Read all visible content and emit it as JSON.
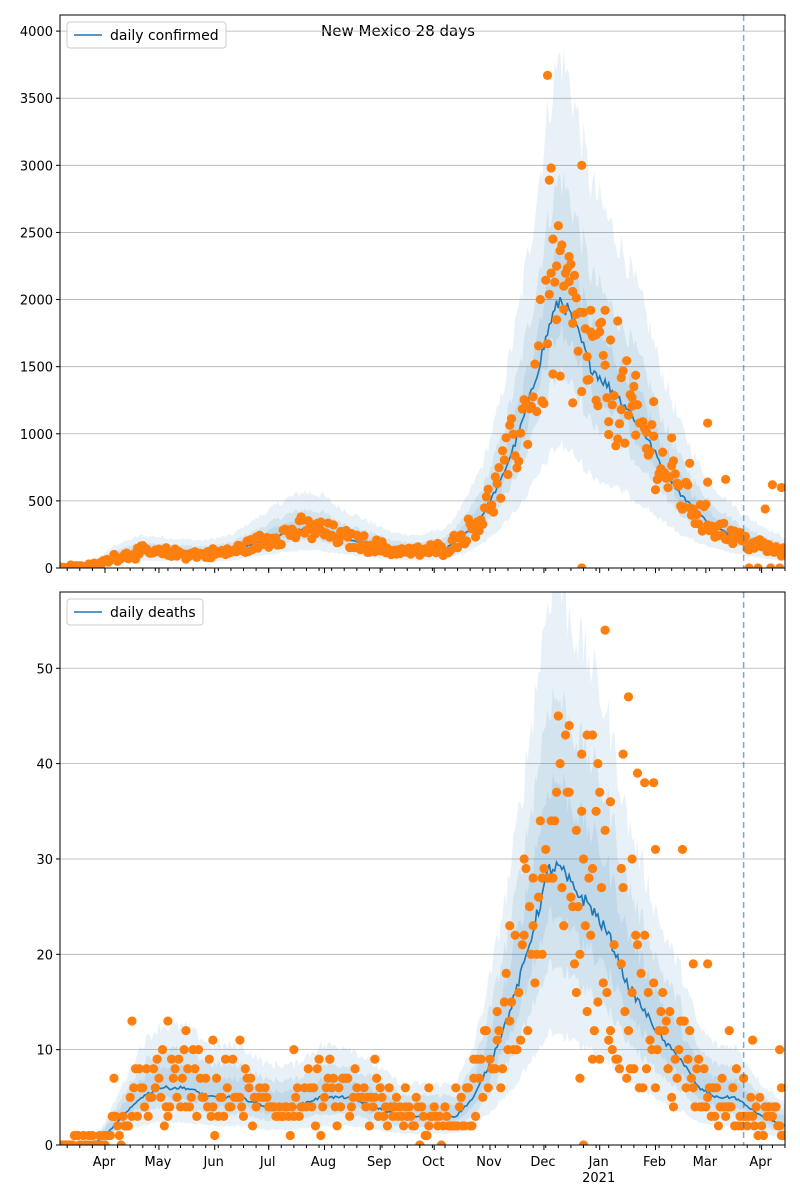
{
  "figure_title": "New Mexico 28 days",
  "colors": {
    "line": "#1f77b4",
    "band": "#1f77b4",
    "points": "#ff7f0e",
    "grid": "#b0b0b0",
    "vline": "#1f77b4"
  },
  "chart_data": [
    {
      "type": "line",
      "legend": "daily confirmed",
      "legend_position": "top-left",
      "ylim": [
        0,
        4120
      ],
      "yticks": [
        0,
        500,
        1000,
        1500,
        2000,
        2500,
        3000,
        3500,
        4000
      ],
      "x_range_days": [
        0,
        403
      ],
      "grid": "horizontal",
      "vline_day": 380,
      "band_widths": [
        0.2,
        0.45,
        0.9
      ],
      "median_keypoints": [
        [
          0,
          5
        ],
        [
          20,
          20
        ],
        [
          30,
          80
        ],
        [
          45,
          120
        ],
        [
          60,
          110
        ],
        [
          80,
          100
        ],
        [
          95,
          120
        ],
        [
          110,
          190
        ],
        [
          125,
          260
        ],
        [
          135,
          290
        ],
        [
          145,
          280
        ],
        [
          155,
          230
        ],
        [
          170,
          180
        ],
        [
          185,
          130
        ],
        [
          200,
          120
        ],
        [
          215,
          150
        ],
        [
          225,
          250
        ],
        [
          235,
          400
        ],
        [
          245,
          650
        ],
        [
          255,
          1000
        ],
        [
          262,
          1300
        ],
        [
          268,
          1600
        ],
        [
          273,
          1850
        ],
        [
          278,
          2000
        ],
        [
          283,
          1900
        ],
        [
          288,
          1750
        ],
        [
          295,
          1500
        ],
        [
          305,
          1350
        ],
        [
          315,
          1200
        ],
        [
          325,
          1000
        ],
        [
          335,
          750
        ],
        [
          345,
          550
        ],
        [
          355,
          400
        ],
        [
          365,
          300
        ],
        [
          380,
          200
        ],
        [
          395,
          140
        ],
        [
          403,
          110
        ]
      ],
      "points": [
        [
          271,
          3670
        ],
        [
          273,
          2980
        ],
        [
          272,
          2890
        ],
        [
          274,
          2450
        ],
        [
          276,
          2250
        ],
        [
          280,
          2100
        ],
        [
          283,
          2320
        ],
        [
          285,
          2060
        ],
        [
          290,
          3000
        ],
        [
          287,
          1890
        ],
        [
          295,
          1920
        ],
        [
          300,
          1820
        ],
        [
          303,
          1920
        ],
        [
          310,
          1840
        ],
        [
          318,
          1270
        ],
        [
          330,
          1240
        ],
        [
          340,
          970
        ],
        [
          350,
          780
        ],
        [
          360,
          640
        ],
        [
          360,
          1080
        ],
        [
          370,
          660
        ],
        [
          392,
          440
        ],
        [
          396,
          620
        ],
        [
          401,
          600
        ],
        [
          383,
          0
        ],
        [
          388,
          0
        ],
        [
          395,
          0
        ],
        [
          400,
          0
        ],
        [
          290,
          0
        ],
        [
          268,
          1240
        ],
        [
          278,
          1430
        ],
        [
          285,
          1230
        ],
        [
          293,
          1400
        ],
        [
          298,
          1250
        ],
        [
          305,
          1090
        ],
        [
          312,
          1180
        ],
        [
          320,
          990
        ],
        [
          326,
          890
        ],
        [
          334,
          740
        ],
        [
          343,
          630
        ],
        [
          352,
          440
        ],
        [
          365,
          310
        ],
        [
          375,
          240
        ]
      ],
      "xticks_major": [
        "Apr",
        "May",
        "Jun",
        "Jul",
        "Aug",
        "Sep",
        "Oct",
        "Nov",
        "Dec",
        "Jan",
        "Feb",
        "Mar",
        "Apr"
      ],
      "xticks_major_days": [
        25,
        55,
        86,
        116,
        147,
        178,
        208,
        239,
        269,
        300,
        331,
        359,
        390
      ]
    },
    {
      "type": "line",
      "legend": "daily deaths",
      "legend_position": "top-left",
      "ylim": [
        0,
        58
      ],
      "yticks": [
        0,
        10,
        20,
        30,
        40,
        50
      ],
      "x_range_days": [
        0,
        403
      ],
      "grid": "horizontal",
      "vline_day": 380,
      "band_widths": [
        0.3,
        0.6,
        1.0
      ],
      "median_keypoints": [
        [
          0,
          0
        ],
        [
          18,
          0
        ],
        [
          25,
          1
        ],
        [
          35,
          3
        ],
        [
          45,
          5
        ],
        [
          55,
          6
        ],
        [
          70,
          6
        ],
        [
          85,
          5
        ],
        [
          100,
          5
        ],
        [
          115,
          4
        ],
        [
          130,
          4
        ],
        [
          145,
          5
        ],
        [
          160,
          5
        ],
        [
          175,
          4
        ],
        [
          190,
          3
        ],
        [
          205,
          3
        ],
        [
          220,
          3
        ],
        [
          230,
          5
        ],
        [
          240,
          9
        ],
        [
          250,
          14
        ],
        [
          258,
          19
        ],
        [
          265,
          24
        ],
        [
          272,
          29
        ],
        [
          278,
          29
        ],
        [
          285,
          27
        ],
        [
          295,
          25
        ],
        [
          305,
          22
        ],
        [
          315,
          17
        ],
        [
          325,
          14
        ],
        [
          335,
          11
        ],
        [
          345,
          9
        ],
        [
          355,
          6
        ],
        [
          365,
          5
        ],
        [
          375,
          5
        ],
        [
          390,
          3
        ],
        [
          403,
          2
        ]
      ],
      "points": [
        [
          303,
          54
        ],
        [
          316,
          47
        ],
        [
          283,
          44
        ],
        [
          293,
          43
        ],
        [
          296,
          43
        ],
        [
          313,
          41
        ],
        [
          299,
          40
        ],
        [
          321,
          39
        ],
        [
          325,
          38
        ],
        [
          330,
          38
        ],
        [
          290,
          35
        ],
        [
          306,
          36
        ],
        [
          287,
          33
        ],
        [
          263,
          28
        ],
        [
          268,
          28
        ],
        [
          274,
          28
        ],
        [
          312,
          29
        ],
        [
          318,
          30
        ],
        [
          331,
          31
        ],
        [
          346,
          31
        ],
        [
          352,
          19
        ],
        [
          360,
          19
        ],
        [
          372,
          12
        ],
        [
          380,
          7
        ],
        [
          385,
          11
        ],
        [
          400,
          10
        ],
        [
          401,
          6
        ],
        [
          30,
          7
        ],
        [
          40,
          13
        ],
        [
          60,
          13
        ],
        [
          70,
          12
        ],
        [
          85,
          11
        ],
        [
          100,
          11
        ],
        [
          130,
          10
        ],
        [
          150,
          9
        ],
        [
          175,
          9
        ],
        [
          192,
          6
        ],
        [
          205,
          6
        ],
        [
          220,
          6
        ],
        [
          230,
          9
        ],
        [
          243,
          14
        ],
        [
          250,
          23
        ],
        [
          258,
          22
        ],
        [
          291,
          0
        ],
        [
          289,
          7
        ],
        [
          296,
          9
        ],
        [
          300,
          9
        ],
        [
          338,
          8
        ]
      ],
      "xticks_major": [
        "Apr",
        "May",
        "Jun",
        "Jul",
        "Aug",
        "Sep",
        "Oct",
        "Nov",
        "Dec",
        "Jan",
        "Feb",
        "Mar",
        "Apr"
      ],
      "xticks_major_days": [
        25,
        55,
        86,
        116,
        147,
        178,
        208,
        239,
        269,
        300,
        331,
        359,
        390
      ],
      "x_sublabel": "2021",
      "x_sublabel_day": 300
    }
  ]
}
